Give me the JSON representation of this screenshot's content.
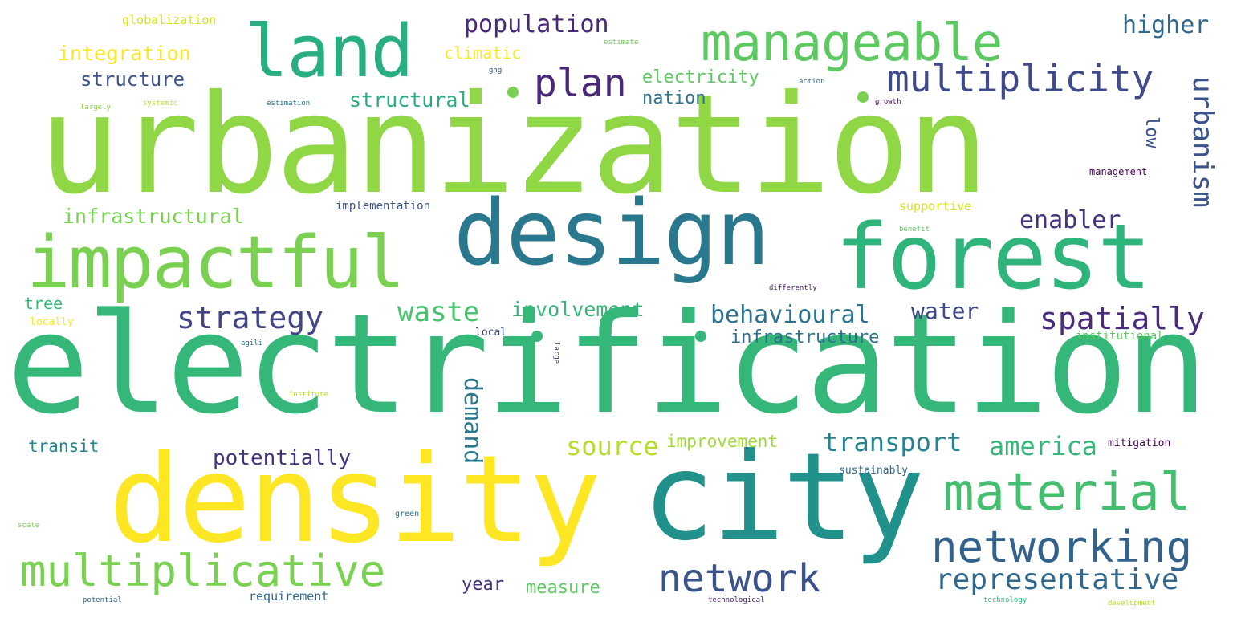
{
  "words": [
    {
      "text": "urbanization",
      "color": "#8fd744"
    },
    {
      "text": "electrification",
      "color": "#35b779"
    },
    {
      "text": "density",
      "color": "#fde725"
    },
    {
      "text": "city",
      "color": "#21918c"
    },
    {
      "text": "design",
      "color": "#2a788e"
    },
    {
      "text": "forest",
      "color": "#2fb47c"
    },
    {
      "text": "impactful",
      "color": "#7ad151"
    },
    {
      "text": "land",
      "color": "#28ae80"
    },
    {
      "text": "manageable",
      "color": "#5ec962"
    },
    {
      "text": "multiplicative",
      "color": "#7ad151"
    },
    {
      "text": "material",
      "color": "#44bf70"
    },
    {
      "text": "networking",
      "color": "#33638d"
    },
    {
      "text": "network",
      "color": "#3b528b"
    },
    {
      "text": "multiplicity",
      "color": "#3e4a89"
    },
    {
      "text": "plan",
      "color": "#482878"
    },
    {
      "text": "representative",
      "color": "#31688e"
    },
    {
      "text": "spatially",
      "color": "#472d7b"
    },
    {
      "text": "strategy",
      "color": "#414487"
    },
    {
      "text": "waste",
      "color": "#4ac16d"
    },
    {
      "text": "behavioural",
      "color": "#2c728e"
    },
    {
      "text": "urbanism",
      "color": "#3b528b"
    },
    {
      "text": "enabler",
      "color": "#46337e"
    },
    {
      "text": "transport",
      "color": "#26828e"
    },
    {
      "text": "america",
      "color": "#35b779"
    },
    {
      "text": "population",
      "color": "#482878"
    },
    {
      "text": "higher",
      "color": "#31688e"
    },
    {
      "text": "source",
      "color": "#b5de2b"
    },
    {
      "text": "demand",
      "color": "#2a788e"
    },
    {
      "text": "potentially",
      "color": "#46337e"
    },
    {
      "text": "water",
      "color": "#3e4a89"
    },
    {
      "text": "involvement",
      "color": "#35b779"
    },
    {
      "text": "infrastructural",
      "color": "#7ad151"
    },
    {
      "text": "integration",
      "color": "#fde725"
    },
    {
      "text": "structure",
      "color": "#3b528b"
    },
    {
      "text": "structural",
      "color": "#29af7f"
    },
    {
      "text": "electricity",
      "color": "#5ec962"
    },
    {
      "text": "nation",
      "color": "#2c728e"
    },
    {
      "text": "infrastructure",
      "color": "#2c728e"
    },
    {
      "text": "improvement",
      "color": "#a0da39"
    },
    {
      "text": "measure",
      "color": "#5ec962"
    },
    {
      "text": "year",
      "color": "#46337e"
    },
    {
      "text": "transit",
      "color": "#26828e"
    },
    {
      "text": "low",
      "color": "#3b528b"
    },
    {
      "text": "tree",
      "color": "#35b779"
    },
    {
      "text": "climatic",
      "color": "#fde725"
    },
    {
      "text": "requirement",
      "color": "#31688e"
    },
    {
      "text": "globalization",
      "color": "#d8e219"
    },
    {
      "text": "implementation",
      "color": "#3b528b"
    },
    {
      "text": "supportive",
      "color": "#d8e219"
    },
    {
      "text": "institutional",
      "color": "#5ec962"
    },
    {
      "text": "mitigation",
      "color": "#440154"
    },
    {
      "text": "management",
      "color": "#440154"
    },
    {
      "text": "sustainably",
      "color": "#31688e"
    },
    {
      "text": "local",
      "color": "#3e4a89"
    },
    {
      "text": "locally",
      "color": "#fde725"
    },
    {
      "text": "estimate",
      "color": "#6ece58"
    },
    {
      "text": "ghg",
      "color": "#3b528b"
    },
    {
      "text": "action",
      "color": "#31688e"
    },
    {
      "text": "growth",
      "color": "#440154"
    },
    {
      "text": "largely",
      "color": "#8fd744"
    },
    {
      "text": "systemic",
      "color": "#b5de2b"
    },
    {
      "text": "estimation",
      "color": "#2a788e"
    },
    {
      "text": "benefit",
      "color": "#5ec962"
    },
    {
      "text": "differently",
      "color": "#481a6c"
    },
    {
      "text": "agili",
      "color": "#2c728e"
    },
    {
      "text": "large",
      "color": "#46337e"
    },
    {
      "text": "institute",
      "color": "#b5de2b"
    },
    {
      "text": "green",
      "color": "#2c728e"
    },
    {
      "text": "scale",
      "color": "#7ad151"
    },
    {
      "text": "potential",
      "color": "#31688e"
    },
    {
      "text": "technological",
      "color": "#481a6c"
    },
    {
      "text": "technology",
      "color": "#35b779"
    },
    {
      "text": "development",
      "color": "#b5de2b"
    }
  ]
}
